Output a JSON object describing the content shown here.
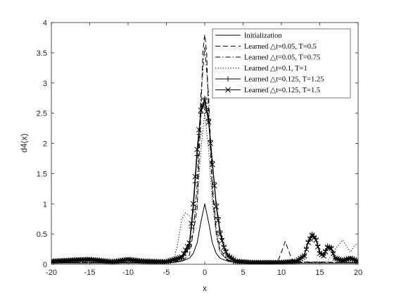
{
  "chart_data": {
    "type": "line",
    "title": "",
    "xlabel": "x",
    "ylabel": "d4(x)",
    "xlim": [
      -20,
      20
    ],
    "ylim": [
      0,
      4
    ],
    "x_ticks": [
      "-20",
      "-15",
      "-10",
      "-5",
      "0",
      "5",
      "10",
      "15",
      "20"
    ],
    "y_ticks": [
      "0",
      "0.5",
      "1",
      "1.5",
      "2",
      "2.5",
      "3",
      "3.5",
      "4"
    ],
    "grid": false,
    "legend_position": "top-right",
    "series": [
      {
        "name": "Initialization",
        "style": "solid",
        "marker": "none",
        "x": [
          -20,
          -10,
          -6,
          -4,
          -3,
          -2,
          -1.5,
          -1,
          -0.5,
          0,
          0.5,
          1,
          1.5,
          2,
          3,
          4,
          6,
          10,
          20
        ],
        "y": [
          0.02,
          0.02,
          0.02,
          0.03,
          0.05,
          0.1,
          0.18,
          0.35,
          0.7,
          1.0,
          0.7,
          0.35,
          0.18,
          0.1,
          0.05,
          0.03,
          0.02,
          0.02,
          0.02
        ]
      },
      {
        "name": "Learned △t=0.05, T=0.5",
        "style": "dashed",
        "marker": "none",
        "x": [
          -20,
          -5,
          -3,
          -2,
          -1,
          -0.5,
          -0.25,
          0,
          0.25,
          0.5,
          1,
          1.5,
          2,
          3,
          5,
          9.5,
          10,
          10.5,
          11,
          11.5,
          20
        ],
        "y": [
          0.03,
          0.03,
          0.05,
          0.15,
          0.9,
          2.5,
          3.5,
          3.8,
          3.5,
          2.5,
          1.2,
          0.5,
          0.2,
          0.06,
          0.03,
          0.04,
          0.2,
          0.38,
          0.2,
          0.04,
          0.03
        ]
      },
      {
        "name": "Learned △t=0.05, T=0.75",
        "style": "dashdot",
        "marker": "none",
        "x": [
          -20,
          -5,
          -3,
          -2.5,
          -2,
          -1.5,
          -1,
          -0.5,
          0,
          0.5,
          1,
          1.5,
          2,
          3,
          5,
          20
        ],
        "y": [
          0.03,
          0.03,
          0.07,
          0.25,
          0.4,
          0.5,
          1.3,
          2.8,
          3.6,
          2.8,
          1.3,
          0.6,
          0.25,
          0.07,
          0.03,
          0.03
        ]
      },
      {
        "name": "Learned △t=0.1, T=1",
        "style": "dotted",
        "marker": "none",
        "x": [
          -20,
          -6,
          -4,
          -3.5,
          -3,
          -2.5,
          -2,
          -1.5,
          -1,
          -0.5,
          0,
          0.5,
          1,
          1.5,
          2,
          3,
          5,
          16,
          17,
          18,
          19,
          19.5,
          20
        ],
        "y": [
          0.03,
          0.03,
          0.1,
          0.35,
          0.75,
          0.85,
          0.8,
          0.7,
          1.0,
          1.9,
          2.5,
          1.9,
          1.0,
          0.5,
          0.2,
          0.06,
          0.03,
          0.04,
          0.25,
          0.4,
          0.2,
          0.3,
          0.35
        ]
      },
      {
        "name": "Learned △t=0.125, T=1.25",
        "style": "solid",
        "marker": "plus",
        "x": [
          -20,
          -17,
          -15,
          -12,
          -10,
          -8,
          -5,
          -3,
          -2,
          -1.5,
          -1,
          -0.5,
          0,
          0.5,
          1,
          1.5,
          2,
          2.5,
          3,
          4,
          6,
          10,
          12,
          13,
          13.5,
          14,
          14.5,
          15,
          15.5,
          16,
          16.5,
          17,
          18,
          19,
          20
        ],
        "y": [
          0.05,
          0.07,
          0.08,
          0.04,
          0.08,
          0.05,
          0.04,
          0.1,
          0.3,
          0.9,
          1.8,
          2.5,
          2.75,
          2.4,
          1.7,
          1.0,
          0.55,
          0.3,
          0.15,
          0.05,
          0.03,
          0.03,
          0.05,
          0.15,
          0.38,
          0.5,
          0.42,
          0.2,
          0.15,
          0.3,
          0.28,
          0.1,
          0.06,
          0.1,
          0.05
        ]
      },
      {
        "name": "Learned △t=0.125, T=1.5",
        "style": "solid",
        "marker": "x",
        "x": [
          -20,
          -17,
          -15,
          -12,
          -10,
          -8,
          -5,
          -3,
          -2,
          -1.5,
          -1,
          -0.5,
          0,
          0.5,
          1,
          1.5,
          2,
          2.5,
          3,
          4,
          6,
          10,
          12,
          13,
          13.5,
          14,
          14.5,
          15,
          15.5,
          16,
          16.5,
          17,
          18,
          19,
          20
        ],
        "y": [
          0.05,
          0.07,
          0.08,
          0.04,
          0.08,
          0.05,
          0.04,
          0.12,
          0.35,
          1.0,
          1.9,
          2.55,
          2.7,
          2.35,
          1.65,
          0.95,
          0.5,
          0.28,
          0.14,
          0.05,
          0.03,
          0.03,
          0.05,
          0.14,
          0.36,
          0.48,
          0.4,
          0.18,
          0.14,
          0.28,
          0.26,
          0.1,
          0.06,
          0.1,
          0.05
        ]
      }
    ]
  }
}
